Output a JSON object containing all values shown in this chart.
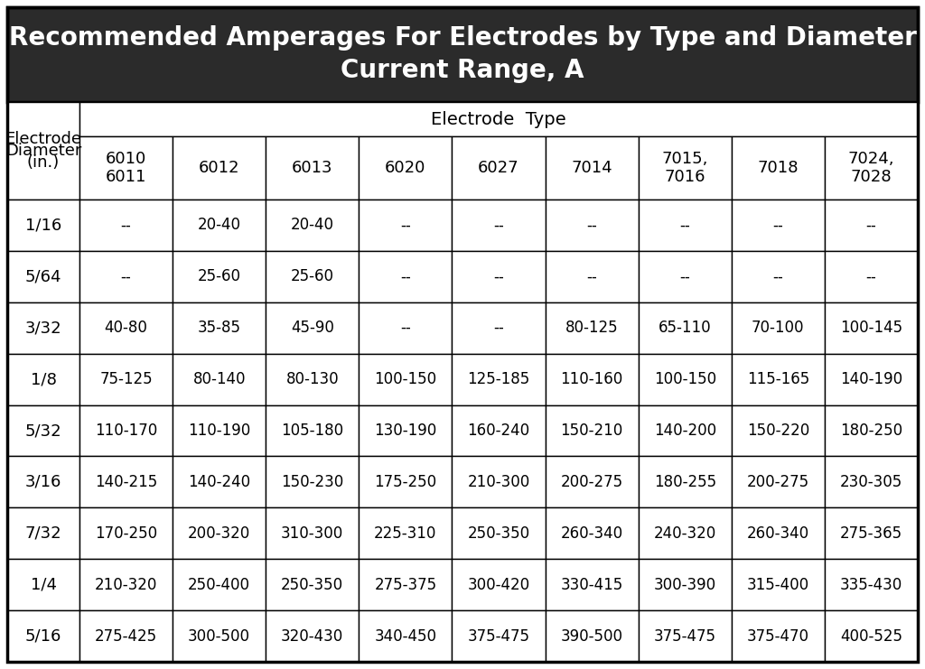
{
  "title_line1": "Recommended Amperages For Electrodes by Type and Diameter",
  "title_line2": "Current Range, A",
  "col_header_label": "Electrode  Type",
  "row_header_label_line1": "Electrode",
  "row_header_label_line2": "Diameter",
  "row_header_label_line3": "(in.)",
  "electrode_types": [
    "6010\n6011",
    "6012",
    "6013",
    "6020",
    "6027",
    "7014",
    "7015,\n7016",
    "7018",
    "7024,\n7028"
  ],
  "diameters": [
    "1/16",
    "5/64",
    "3/32",
    "1/8",
    "5/32",
    "3/16",
    "7/32",
    "1/4",
    "5/16"
  ],
  "data": [
    [
      "--",
      "20-40",
      "20-40",
      "--",
      "--",
      "--",
      "--",
      "--",
      "--"
    ],
    [
      "--",
      "25-60",
      "25-60",
      "--",
      "--",
      "--",
      "--",
      "--",
      "--"
    ],
    [
      "40-80",
      "35-85",
      "45-90",
      "--",
      "--",
      "80-125",
      "65-110",
      "70-100",
      "100-145"
    ],
    [
      "75-125",
      "80-140",
      "80-130",
      "100-150",
      "125-185",
      "110-160",
      "100-150",
      "115-165",
      "140-190"
    ],
    [
      "110-170",
      "110-190",
      "105-180",
      "130-190",
      "160-240",
      "150-210",
      "140-200",
      "150-220",
      "180-250"
    ],
    [
      "140-215",
      "140-240",
      "150-230",
      "175-250",
      "210-300",
      "200-275",
      "180-255",
      "200-275",
      "230-305"
    ],
    [
      "170-250",
      "200-320",
      "310-300",
      "225-310",
      "250-350",
      "260-340",
      "240-320",
      "260-340",
      "275-365"
    ],
    [
      "210-320",
      "250-400",
      "250-350",
      "275-375",
      "300-420",
      "330-415",
      "300-390",
      "315-400",
      "335-430"
    ],
    [
      "275-425",
      "300-500",
      "320-430",
      "340-450",
      "375-475",
      "390-500",
      "375-475",
      "375-470",
      "400-525"
    ]
  ],
  "bg_color": "#ffffff",
  "title_bg": "#2b2b2b",
  "title_fg": "#ffffff",
  "border_color": "#000000",
  "title_fontsize": 20,
  "header_fontsize": 13,
  "cell_fontsize": 12
}
